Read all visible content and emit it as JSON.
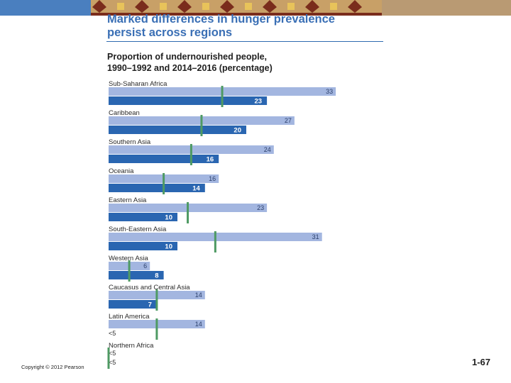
{
  "colors": {
    "bar_1990": "#a3b6e0",
    "bar_2014": "#2a66b1",
    "marker": "#4e9a63",
    "title": "#3a6fb5",
    "banner_blue": "#4a7fbf",
    "banner_tan": "#b99a73"
  },
  "header": {
    "title_line1": "Marked differences in hunger prevalence",
    "title_line2": "persist across regions"
  },
  "chart_data": {
    "type": "bar",
    "orientation": "horizontal",
    "title": "Proportion of undernourished people, 1990–1992 and 2014–2016 (percentage)",
    "subtitle_line1": "Proportion of undernourished people,",
    "subtitle_line2": "1990–1992 and 2014–2016 (percentage)",
    "series_names": [
      "1990–1992",
      "2014–2016"
    ],
    "xlim": [
      0,
      35
    ],
    "categories": [
      {
        "name": "Sub-Saharan Africa",
        "v1990": 33,
        "l1990": "33",
        "v2014": 23,
        "l2014": "23",
        "target": 16.5
      },
      {
        "name": "Caribbean",
        "v1990": 27,
        "l1990": "27",
        "v2014": 20,
        "l2014": "20",
        "target": 13.5
      },
      {
        "name": "Southern Asia",
        "v1990": 24,
        "l1990": "24",
        "v2014": 16,
        "l2014": "16",
        "target": 12
      },
      {
        "name": "Oceania",
        "v1990": 16,
        "l1990": "16",
        "v2014": 14,
        "l2014": "14",
        "target": 8
      },
      {
        "name": "Eastern Asia",
        "v1990": 23,
        "l1990": "23",
        "v2014": 10,
        "l2014": "10",
        "target": 11.5
      },
      {
        "name": "South-Eastern Asia",
        "v1990": 31,
        "l1990": "31",
        "v2014": 10,
        "l2014": "10",
        "target": 15.5
      },
      {
        "name": "Western Asia",
        "v1990": 6,
        "l1990": "6",
        "v2014": 8,
        "l2014": "8",
        "target": 3
      },
      {
        "name": "Caucasus and Central Asia",
        "v1990": 14,
        "l1990": "14",
        "v2014": 7,
        "l2014": "7",
        "target": 7
      },
      {
        "name": "Latin America",
        "v1990": 14,
        "l1990": "14",
        "v2014": null,
        "l2014": "<5",
        "target": 7
      },
      {
        "name": "Northern Africa",
        "v1990": null,
        "l1990": "<5",
        "v2014": null,
        "l2014": "<5",
        "target": 0
      }
    ]
  },
  "footer": {
    "copyright": "Copyright © 2012 Pearson",
    "slide_number": "1-67"
  }
}
